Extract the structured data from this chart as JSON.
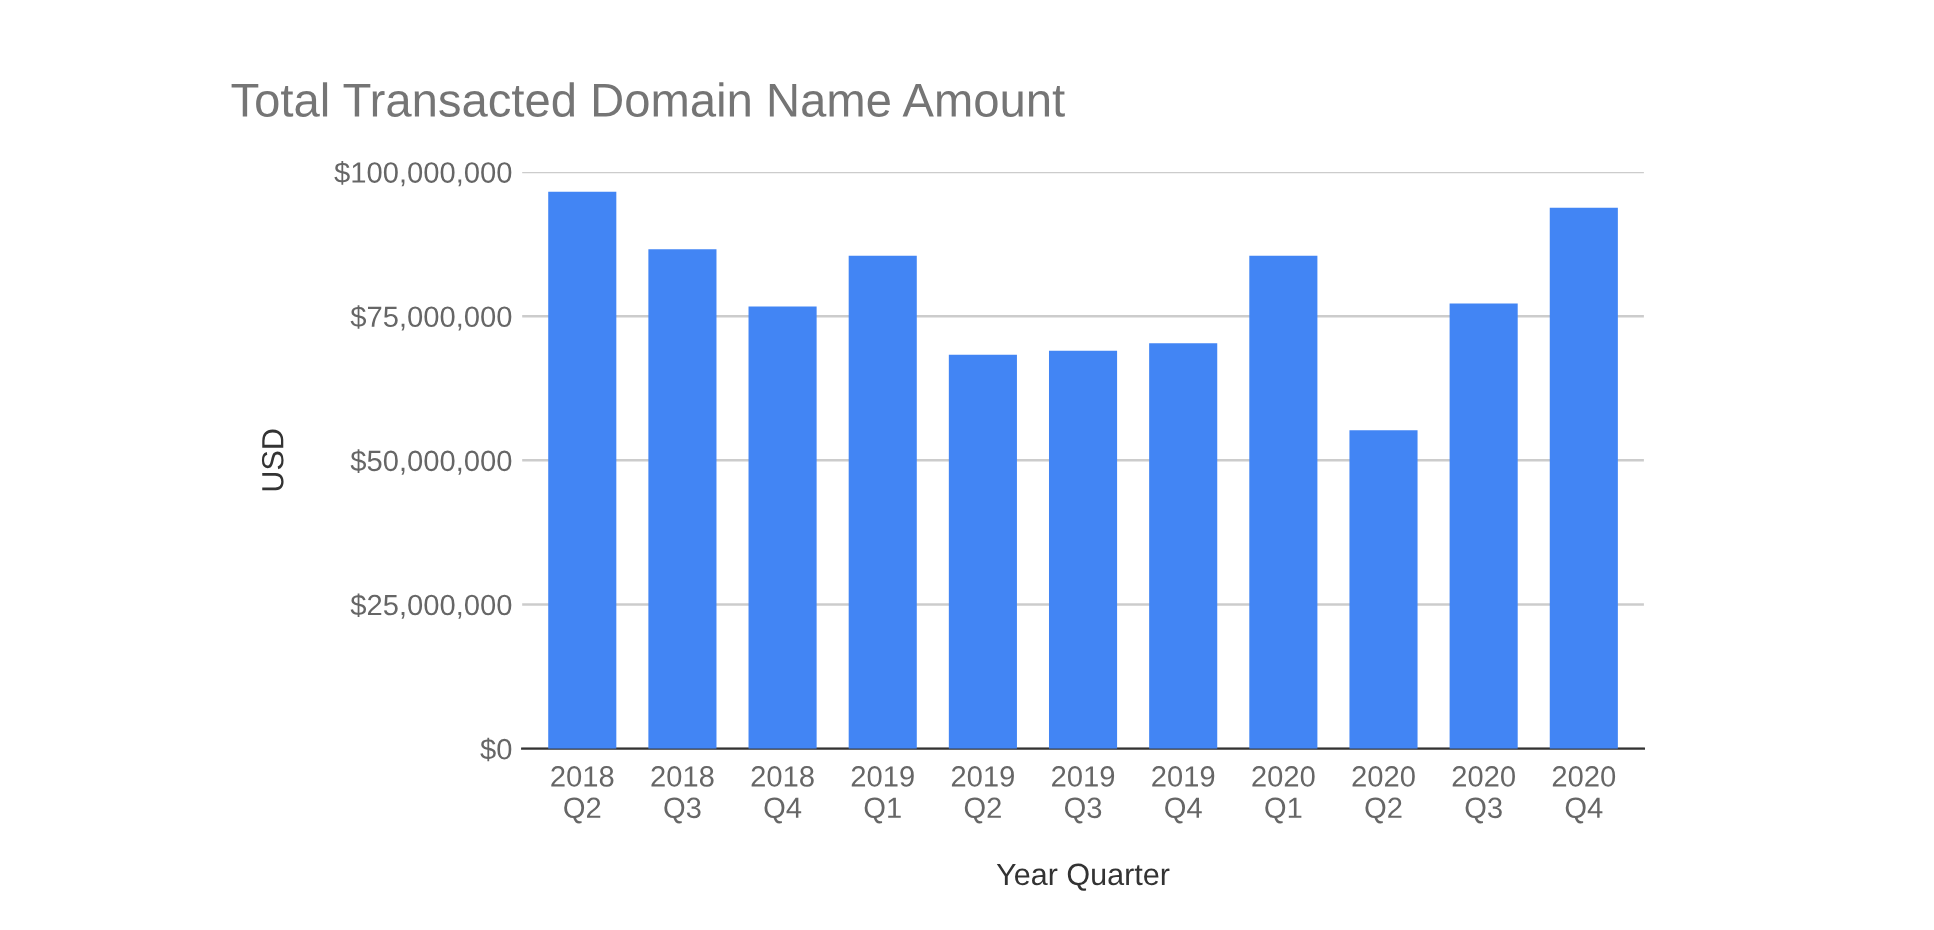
{
  "chart_data": {
    "type": "bar",
    "title": "Total Transacted Domain Name Amount",
    "xlabel": "Year Quarter",
    "ylabel": "USD",
    "categories": [
      "2018\nQ2",
      "2018\nQ3",
      "2018\nQ4",
      "2019\nQ1",
      "2019\nQ2",
      "2019\nQ3",
      "2019\nQ4",
      "2020\nQ1",
      "2020\nQ2",
      "2020\nQ3",
      "2020\nQ4"
    ],
    "values": [
      96600000,
      86600000,
      76700000,
      85500000,
      68300000,
      69000000,
      70300000,
      85500000,
      55200000,
      77200000,
      93800000
    ],
    "color": "#4285f4",
    "ylim": [
      0,
      100000000
    ],
    "yticks": [
      {
        "value": 0,
        "label": "$0"
      },
      {
        "value": 25000000,
        "label": "$25,000,000"
      },
      {
        "value": 50000000,
        "label": "$50,000,000"
      },
      {
        "value": 75000000,
        "label": "$75,000,000"
      },
      {
        "value": 100000000,
        "label": "$100,000,000"
      }
    ],
    "grid": "y",
    "legend": false
  }
}
